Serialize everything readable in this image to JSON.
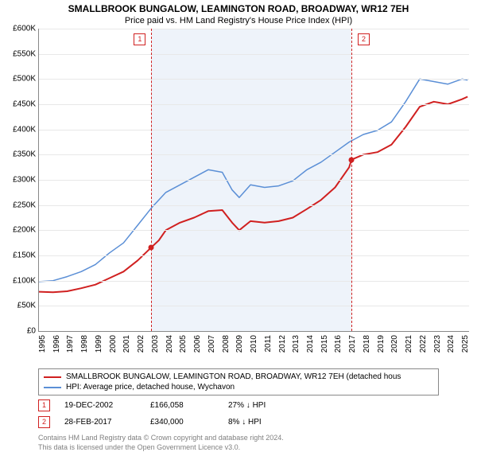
{
  "title": "SMALLBROOK BUNGALOW, LEAMINGTON ROAD, BROADWAY, WR12 7EH",
  "subtitle": "Price paid vs. HM Land Registry's House Price Index (HPI)",
  "chart": {
    "type": "line",
    "background_color": "#ffffff",
    "grid_color": "#e8e8e8",
    "axis_color": "#888888",
    "shade_color": "#eef3fa",
    "ylim": [
      0,
      600000
    ],
    "ytick_step": 50000,
    "yticks": [
      "£0",
      "£50K",
      "£100K",
      "£150K",
      "£200K",
      "£250K",
      "£300K",
      "£350K",
      "£400K",
      "£450K",
      "£500K",
      "£550K",
      "£600K"
    ],
    "xlim": [
      1995,
      2025.5
    ],
    "xticks": [
      1995,
      1996,
      1997,
      1998,
      1999,
      2000,
      2001,
      2002,
      2003,
      2004,
      2005,
      2006,
      2007,
      2008,
      2009,
      2010,
      2011,
      2012,
      2013,
      2014,
      2015,
      2016,
      2017,
      2018,
      2019,
      2020,
      2021,
      2022,
      2023,
      2024,
      2025
    ],
    "label_fontsize": 10,
    "shade_start": 2002.97,
    "shade_end": 2017.16,
    "series": {
      "property": {
        "color": "#d02020",
        "width": 2,
        "points": [
          [
            1995.0,
            78000
          ],
          [
            1996.0,
            77000
          ],
          [
            1997.0,
            79000
          ],
          [
            1998.0,
            85000
          ],
          [
            1999.0,
            92000
          ],
          [
            2000.0,
            105000
          ],
          [
            2001.0,
            118000
          ],
          [
            2002.0,
            140000
          ],
          [
            2002.97,
            166058
          ],
          [
            2003.5,
            180000
          ],
          [
            2004.0,
            200000
          ],
          [
            2005.0,
            215000
          ],
          [
            2006.0,
            225000
          ],
          [
            2007.0,
            238000
          ],
          [
            2008.0,
            240000
          ],
          [
            2008.7,
            215000
          ],
          [
            2009.2,
            200000
          ],
          [
            2010.0,
            218000
          ],
          [
            2011.0,
            215000
          ],
          [
            2012.0,
            218000
          ],
          [
            2013.0,
            225000
          ],
          [
            2014.0,
            242000
          ],
          [
            2015.0,
            260000
          ],
          [
            2016.0,
            285000
          ],
          [
            2017.0,
            325000
          ],
          [
            2017.16,
            340000
          ],
          [
            2018.0,
            350000
          ],
          [
            2019.0,
            355000
          ],
          [
            2020.0,
            370000
          ],
          [
            2021.0,
            405000
          ],
          [
            2022.0,
            445000
          ],
          [
            2023.0,
            455000
          ],
          [
            2024.0,
            450000
          ],
          [
            2025.0,
            460000
          ],
          [
            2025.4,
            465000
          ]
        ]
      },
      "hpi": {
        "color": "#5b8fd6",
        "width": 1.5,
        "points": [
          [
            1995.0,
            98000
          ],
          [
            1996.0,
            100000
          ],
          [
            1997.0,
            108000
          ],
          [
            1998.0,
            118000
          ],
          [
            1999.0,
            132000
          ],
          [
            2000.0,
            155000
          ],
          [
            2001.0,
            175000
          ],
          [
            2002.0,
            210000
          ],
          [
            2003.0,
            245000
          ],
          [
            2004.0,
            275000
          ],
          [
            2005.0,
            290000
          ],
          [
            2006.0,
            305000
          ],
          [
            2007.0,
            320000
          ],
          [
            2008.0,
            315000
          ],
          [
            2008.7,
            280000
          ],
          [
            2009.2,
            265000
          ],
          [
            2010.0,
            290000
          ],
          [
            2011.0,
            285000
          ],
          [
            2012.0,
            288000
          ],
          [
            2013.0,
            298000
          ],
          [
            2014.0,
            320000
          ],
          [
            2015.0,
            335000
          ],
          [
            2016.0,
            355000
          ],
          [
            2017.0,
            375000
          ],
          [
            2018.0,
            390000
          ],
          [
            2019.0,
            398000
          ],
          [
            2020.0,
            415000
          ],
          [
            2021.0,
            455000
          ],
          [
            2022.0,
            500000
          ],
          [
            2023.0,
            495000
          ],
          [
            2024.0,
            490000
          ],
          [
            2025.0,
            500000
          ],
          [
            2025.4,
            498000
          ]
        ]
      }
    },
    "markers": [
      {
        "n": "1",
        "x": 2002.97,
        "y": 166058
      },
      {
        "n": "2",
        "x": 2017.16,
        "y": 340000
      }
    ]
  },
  "legend": {
    "property": "SMALLBROOK BUNGALOW, LEAMINGTON ROAD, BROADWAY, WR12 7EH (detached hous",
    "hpi": "HPI: Average price, detached house, Wychavon"
  },
  "sales": [
    {
      "n": "1",
      "date": "19-DEC-2002",
      "price": "£166,058",
      "delta": "27%",
      "arrow": "↓",
      "vs": "HPI"
    },
    {
      "n": "2",
      "date": "28-FEB-2017",
      "price": "£340,000",
      "delta": "8%",
      "arrow": "↓",
      "vs": "HPI"
    }
  ],
  "footer": {
    "line1": "Contains HM Land Registry data © Crown copyright and database right 2024.",
    "line2": "This data is licensed under the Open Government Licence v3.0."
  }
}
